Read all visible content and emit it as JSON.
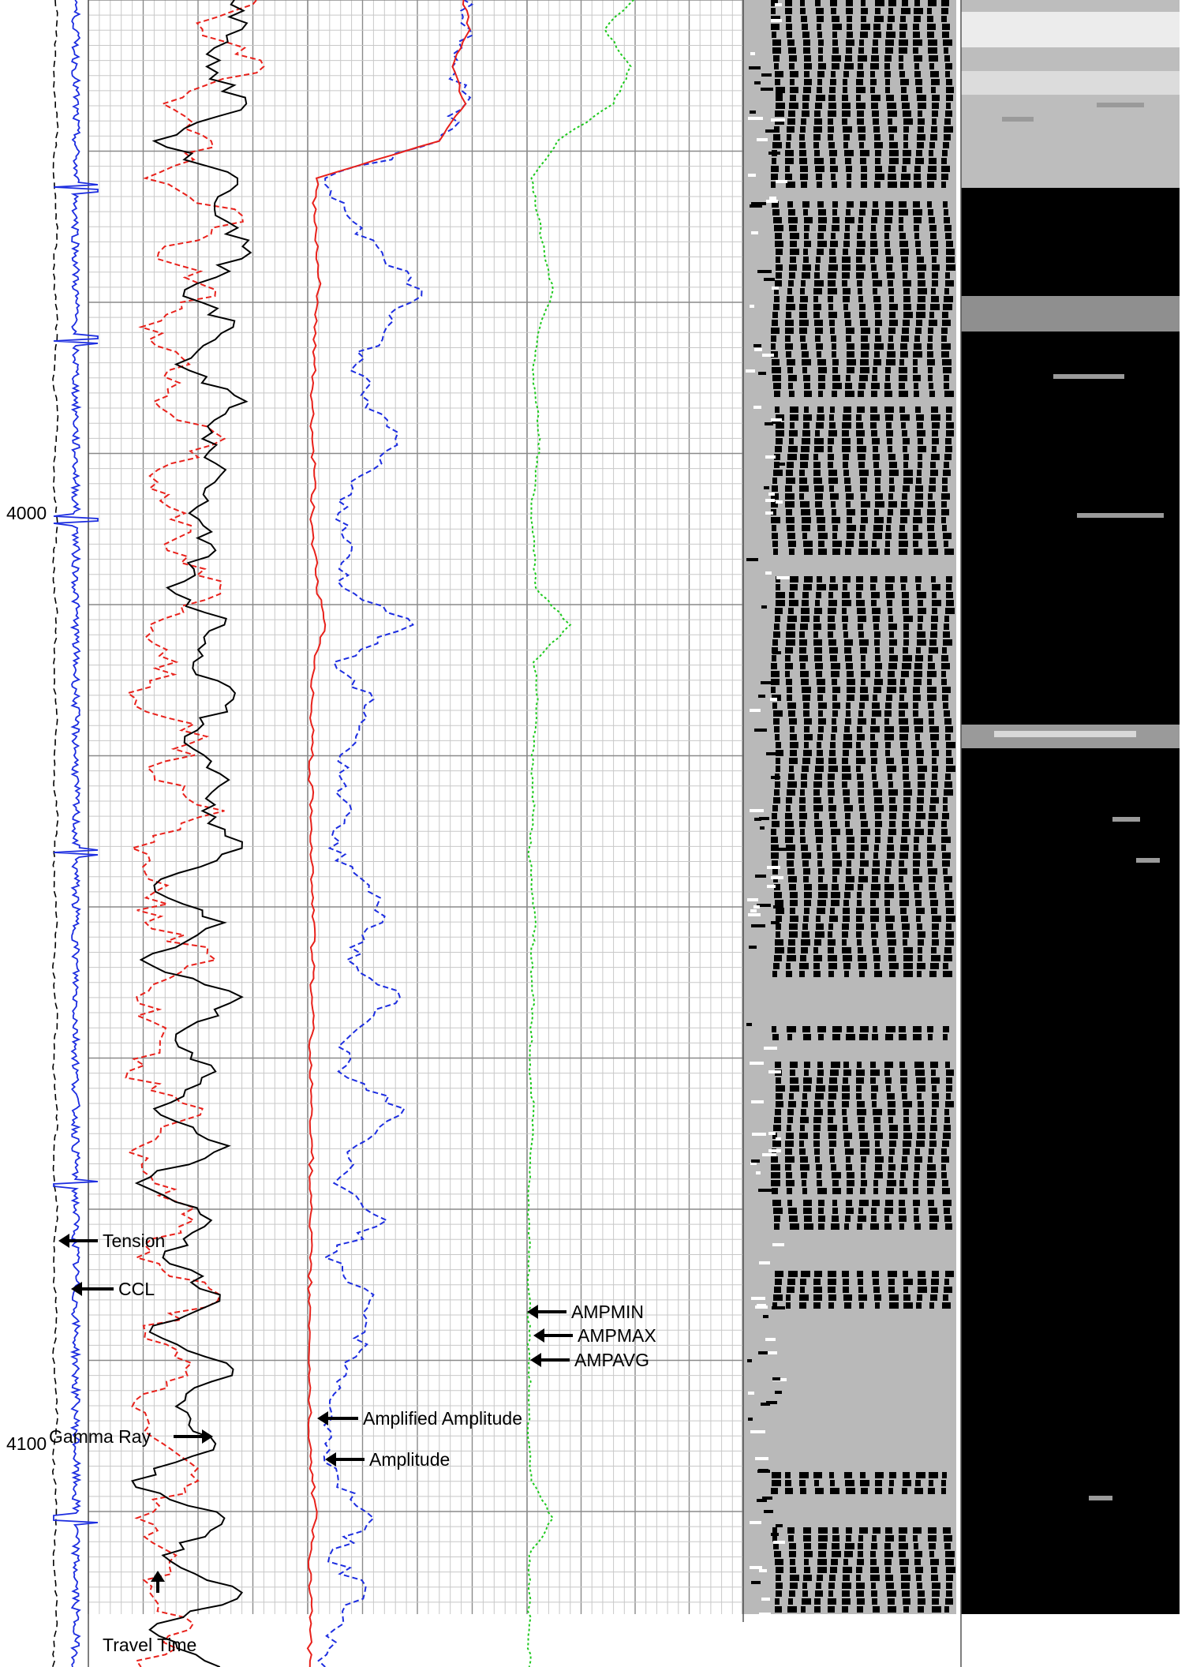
{
  "chart_data": {
    "type": "line",
    "title": "",
    "depth_axis": {
      "ticks": [
        {
          "depth": 4000,
          "label": "4000"
        },
        {
          "depth": 4100,
          "label": "4100"
        }
      ],
      "range": [
        3944,
        4124
      ]
    },
    "tracks": [
      {
        "name": "depth-track",
        "curves": [
          "Tension",
          "CCL"
        ]
      },
      {
        "name": "gamma-traveltime-track",
        "curves": [
          "Gamma Ray",
          "Travel Time"
        ]
      },
      {
        "name": "amplitude-track",
        "curves": [
          "Amplified Amplitude",
          "Amplitude"
        ]
      },
      {
        "name": "amp-stats-track",
        "curves": [
          "AMPMIN",
          "AMPMAX",
          "AMPAVG"
        ]
      },
      {
        "name": "vdl-track",
        "curves": []
      },
      {
        "name": "cement-map-track",
        "curves": []
      }
    ],
    "annotations": [
      {
        "text": "Tension",
        "curve": "tension"
      },
      {
        "text": "CCL",
        "curve": "ccl"
      },
      {
        "text": "Gamma Ray",
        "curve": "gamma_ray"
      },
      {
        "text": "Travel Time",
        "curve": "travel_time"
      },
      {
        "text": "Amplified Amplitude",
        "curve": "amplified_amplitude"
      },
      {
        "text": "Amplitude",
        "curve": "amplitude"
      },
      {
        "text": "AMPMIN",
        "curve": "ampmin"
      },
      {
        "text": "AMPMAX",
        "curve": "ampmax"
      },
      {
        "text": "AMPAVG",
        "curve": "ampavg"
      }
    ],
    "curves": {
      "gamma_ray": {
        "color": "#000000",
        "style": "solid",
        "depth": [
          3944,
          3948,
          3952,
          3956,
          3960,
          3964,
          3968,
          3972,
          3976,
          3980,
          3984,
          3988,
          3992,
          3996,
          4000,
          4004,
          4008,
          4012,
          4016,
          4020,
          4024,
          4028,
          4032,
          4036,
          4040,
          4044,
          4048,
          4052,
          4056,
          4060,
          4064,
          4068,
          4072,
          4076,
          4080,
          4084,
          4088,
          4092,
          4096,
          4100,
          4104,
          4108,
          4112,
          4116,
          4120,
          4124
        ],
        "value": [
          62,
          70,
          54,
          72,
          30,
          68,
          58,
          74,
          44,
          66,
          40,
          72,
          52,
          60,
          46,
          58,
          36,
          62,
          48,
          66,
          44,
          60,
          52,
          70,
          30,
          62,
          24,
          70,
          40,
          58,
          30,
          64,
          22,
          56,
          34,
          60,
          28,
          66,
          40,
          58,
          20,
          62,
          34,
          70,
          28,
          60
        ]
      },
      "travel_time": {
        "color": "#e8211b",
        "style": "dashed",
        "depth": [
          3944,
          3948,
          3952,
          3956,
          3960,
          3964,
          3968,
          3972,
          3976,
          3980,
          3984,
          3988,
          3992,
          3996,
          4000,
          4004,
          4008,
          4012,
          4016,
          4020,
          4024,
          4028,
          4032,
          4036,
          4040,
          4044,
          4048,
          4052,
          4056,
          4060,
          4064,
          4068,
          4072,
          4076,
          4080,
          4084,
          4088,
          4092,
          4096,
          4100,
          4104,
          4108,
          4112,
          4116,
          4120,
          4124
        ],
        "value": [
          78,
          52,
          80,
          34,
          56,
          26,
          70,
          32,
          58,
          24,
          46,
          30,
          62,
          28,
          44,
          36,
          60,
          28,
          40,
          22,
          54,
          30,
          62,
          20,
          36,
          26,
          58,
          22,
          34,
          18,
          52,
          24,
          30,
          48,
          22,
          60,
          26,
          44,
          20,
          34,
          50,
          22,
          40,
          28,
          46,
          24
        ]
      },
      "amplified_amplitude": {
        "color": "#e8211b",
        "style": "solid",
        "depth": [
          3944,
          3948,
          3952,
          3956,
          3960,
          3964,
          3968,
          3972,
          3976,
          3980,
          3984,
          3988,
          3992,
          3996,
          4000,
          4004,
          4008,
          4012,
          4016,
          4020,
          4024,
          4028,
          4032,
          4036,
          4040,
          4044,
          4048,
          4052,
          4056,
          4060,
          4064,
          4068,
          4072,
          4076,
          4080,
          4084,
          4088,
          4092,
          4096,
          4100,
          4104,
          4108,
          4112,
          4116,
          4120,
          4124
        ],
        "value": [
          70,
          74,
          66,
          72,
          60,
          4,
          3,
          4,
          5,
          3,
          3,
          2,
          2,
          3,
          2,
          3,
          4,
          8,
          3,
          2,
          2,
          1,
          2,
          2,
          2,
          3,
          2,
          2,
          2,
          1,
          2,
          2,
          1,
          1,
          1,
          1,
          1,
          1,
          1,
          1,
          2,
          4,
          1,
          1,
          1,
          1
        ]
      },
      "amplitude": {
        "color": "#1c2de0",
        "style": "dashed",
        "depth": [
          3944,
          3948,
          3952,
          3956,
          3960,
          3964,
          3968,
          3972,
          3976,
          3980,
          3984,
          3988,
          3992,
          3996,
          4000,
          4004,
          4008,
          4012,
          4016,
          4020,
          4024,
          4028,
          4032,
          4036,
          4040,
          4044,
          4048,
          4052,
          4056,
          4060,
          4064,
          4068,
          4072,
          4076,
          4080,
          4084,
          4088,
          4092,
          4096,
          4100,
          4104,
          4108,
          4112,
          4116,
          4120,
          4124
        ],
        "value": [
          70,
          74,
          66,
          72,
          60,
          8,
          18,
          34,
          52,
          36,
          22,
          28,
          40,
          24,
          14,
          20,
          16,
          48,
          12,
          30,
          22,
          14,
          20,
          10,
          28,
          34,
          18,
          42,
          20,
          14,
          44,
          22,
          12,
          36,
          8,
          30,
          26,
          18,
          10,
          8,
          14,
          30,
          10,
          26,
          12,
          8
        ]
      },
      "ampavg": {
        "color": "#1ec91e",
        "style": "dotted",
        "depth": [
          3944,
          3948,
          3952,
          3956,
          3960,
          3964,
          3968,
          3972,
          3976,
          3980,
          3984,
          3988,
          3992,
          3996,
          4000,
          4004,
          4008,
          4012,
          4016,
          4020,
          4024,
          4028,
          4032,
          4036,
          4040,
          4044,
          4048,
          4052,
          4056,
          4060,
          4064,
          4068,
          4072,
          4076,
          4080,
          4084,
          4088,
          4092,
          4096,
          4100,
          4104,
          4108,
          4112,
          4116,
          4120,
          4124
        ],
        "value": [
          52,
          36,
          48,
          40,
          14,
          2,
          5,
          8,
          12,
          6,
          3,
          4,
          6,
          4,
          2,
          3,
          4,
          20,
          3,
          5,
          3,
          2,
          3,
          1,
          2,
          4,
          2,
          3,
          2,
          1,
          3,
          2,
          1,
          1,
          1,
          1,
          1,
          1,
          1,
          1,
          2,
          12,
          1,
          1,
          1,
          1
        ]
      }
    }
  }
}
